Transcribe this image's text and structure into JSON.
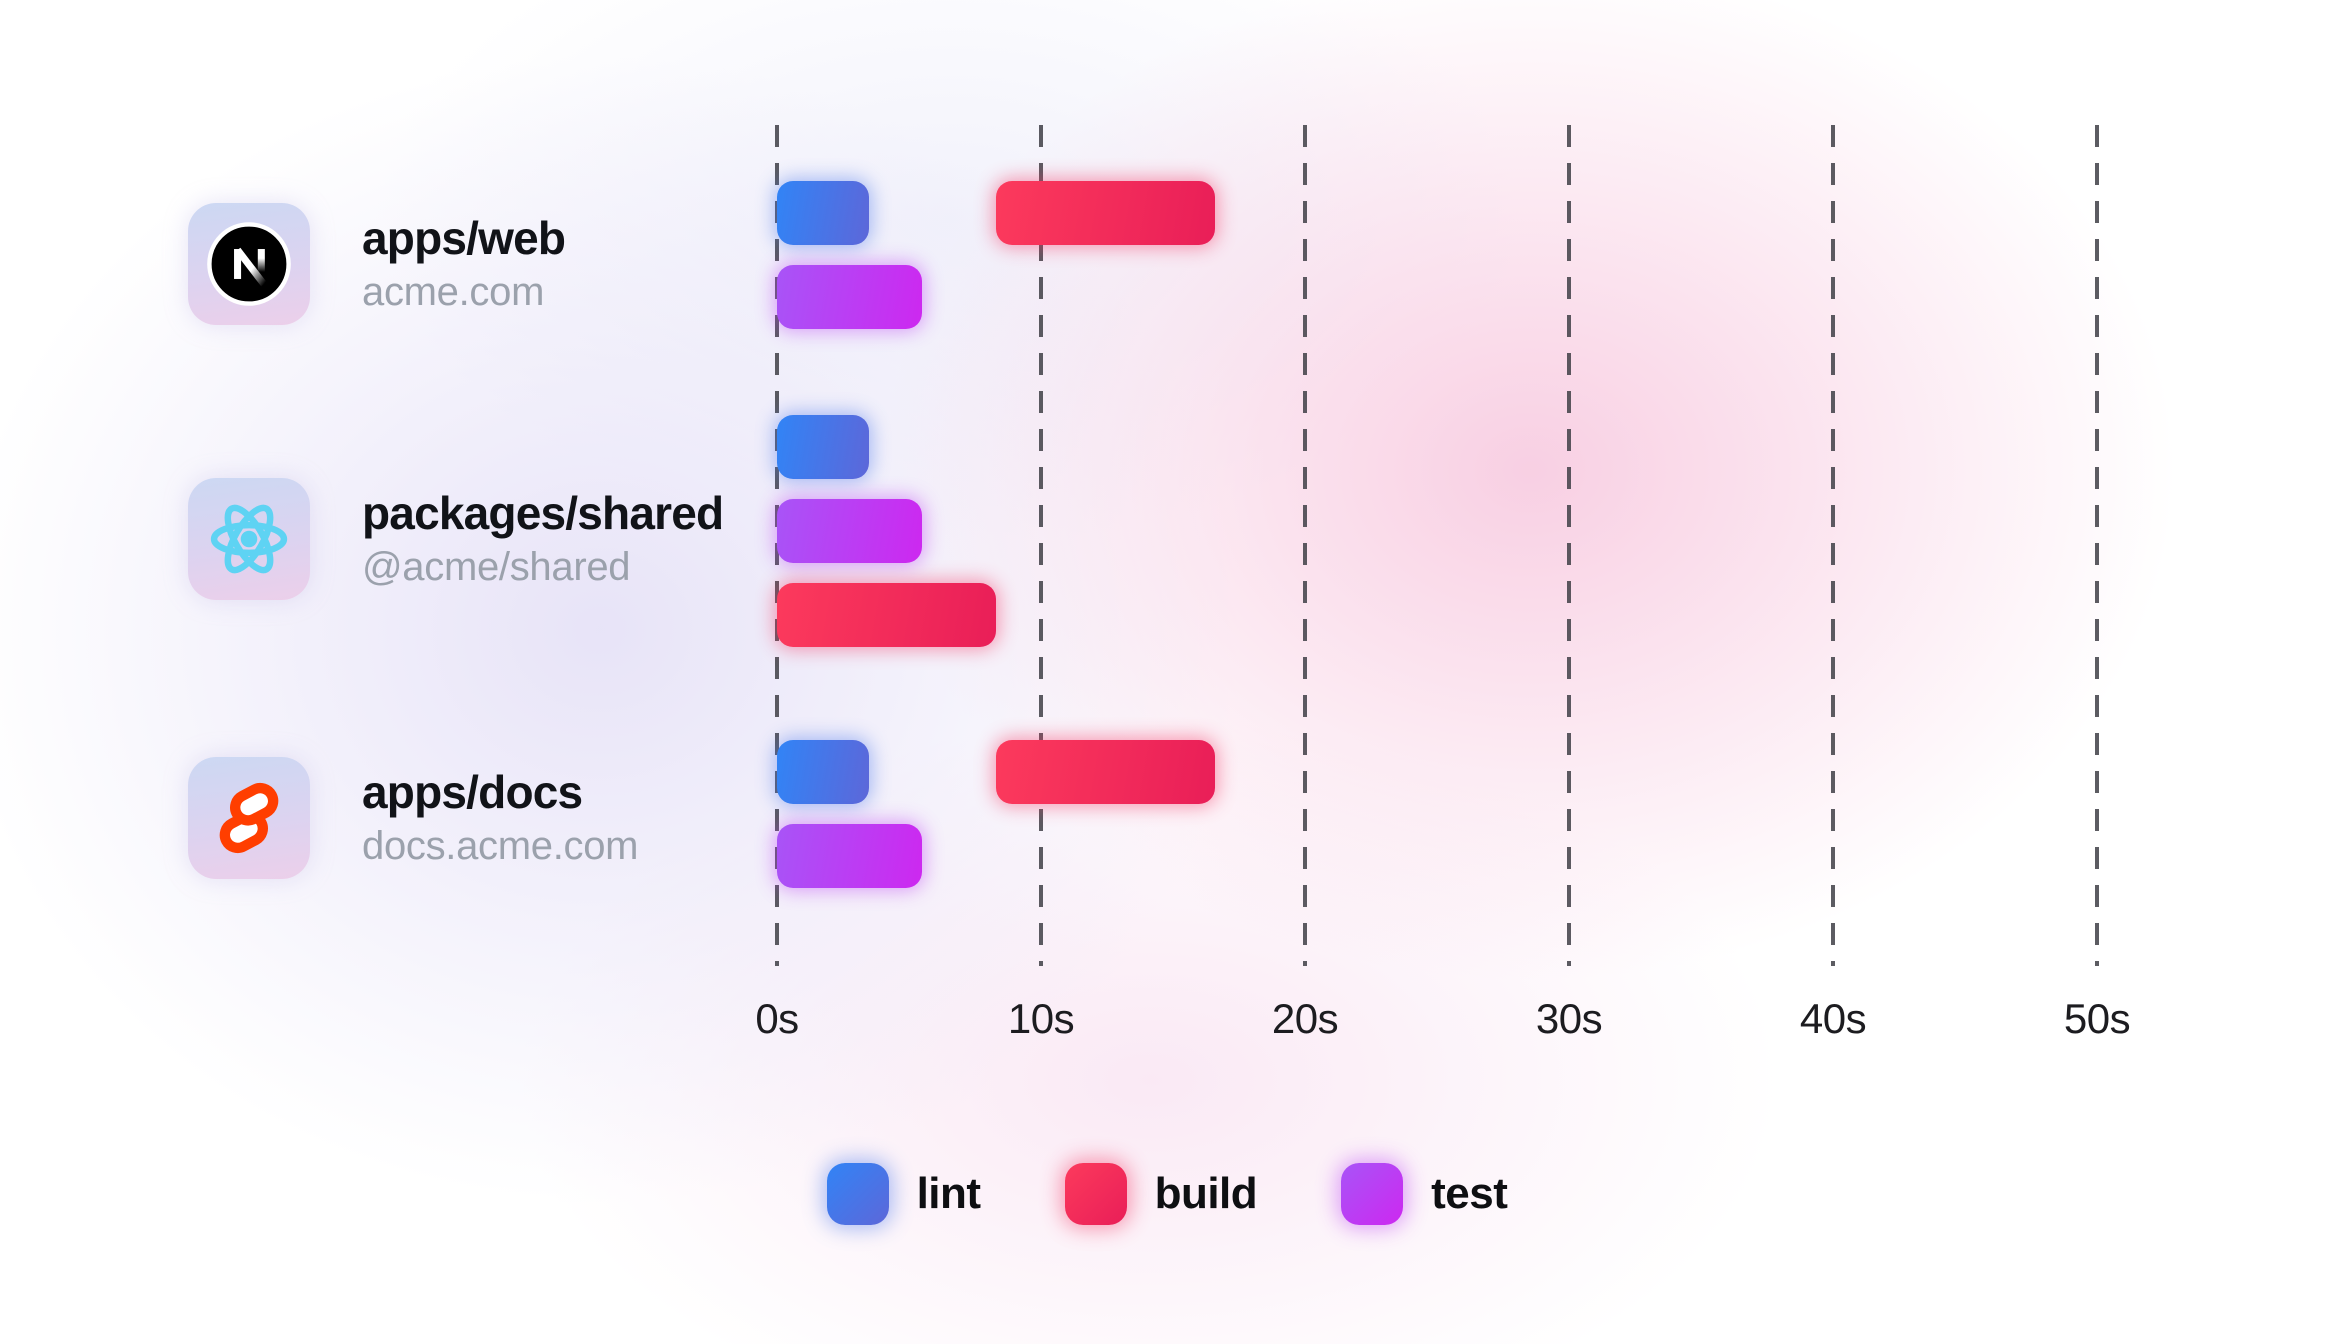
{
  "chart_data": {
    "type": "bar",
    "variant": "gantt-task-timeline",
    "x_axis": {
      "unit": "seconds",
      "range": [
        0,
        50
      ],
      "grid": "dashed-vertical",
      "ticks": [
        {
          "label": "0s",
          "value": 0
        },
        {
          "label": "10s",
          "value": 10
        },
        {
          "label": "20s",
          "value": 20
        },
        {
          "label": "30s",
          "value": 30
        },
        {
          "label": "40s",
          "value": 40
        },
        {
          "label": "50s",
          "value": 50
        }
      ]
    },
    "rows": [
      {
        "name": "apps/web",
        "subtitle": "acme.com",
        "icon": "nextjs-logo-icon",
        "tasks": [
          {
            "task": "lint",
            "start": 0,
            "end": 3.5,
            "lane": 0
          },
          {
            "task": "build",
            "start": 8.3,
            "end": 16.6,
            "lane": 0
          },
          {
            "task": "test",
            "start": 0,
            "end": 5.5,
            "lane": 1
          }
        ]
      },
      {
        "name": "packages/shared",
        "subtitle": "@acme/shared",
        "icon": "react-logo-icon",
        "tasks": [
          {
            "task": "lint",
            "start": 0,
            "end": 3.5,
            "lane": 0
          },
          {
            "task": "test",
            "start": 0,
            "end": 5.5,
            "lane": 1
          },
          {
            "task": "build",
            "start": 0,
            "end": 8.3,
            "lane": 2
          }
        ]
      },
      {
        "name": "apps/docs",
        "subtitle": "docs.acme.com",
        "icon": "svelte-logo-icon",
        "tasks": [
          {
            "task": "lint",
            "start": 0,
            "end": 3.5,
            "lane": 0
          },
          {
            "task": "build",
            "start": 8.3,
            "end": 16.6,
            "lane": 0
          },
          {
            "task": "test",
            "start": 0,
            "end": 5.5,
            "lane": 1
          }
        ]
      }
    ],
    "legend": [
      {
        "label": "lint",
        "task": "lint"
      },
      {
        "label": "build",
        "task": "build"
      },
      {
        "label": "test",
        "task": "test"
      }
    ],
    "task_colors": {
      "lint": {
        "from": "#3184f6",
        "to": "#5d67d9",
        "glow": "rgba(73,118,236,0.45)"
      },
      "build": {
        "from": "#fc3a5c",
        "to": "#e91e58",
        "glow": "rgba(244,47,94,0.45)"
      },
      "test": {
        "from": "#a854f7",
        "to": "#cd28f0",
        "glow": "rgba(186,62,244,0.45)"
      }
    },
    "brand_colors": {
      "nextjs_black": "#000000",
      "react_cyan": "#5ed3f3",
      "svelte_orange": "#ff3e00",
      "gridline_gray": "#3f3f46"
    }
  }
}
